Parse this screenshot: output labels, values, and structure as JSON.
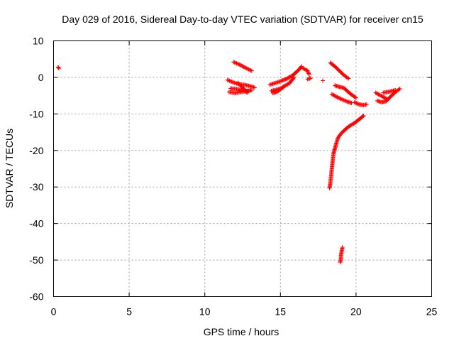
{
  "chart_data": {
    "type": "scatter",
    "title": "Day 029 of 2016, Sidereal Day-to-day VTEC variation (SDTVAR) for receiver cn15",
    "xlabel": "GPS time / hours",
    "ylabel": "SDTVAR / TECUs",
    "xlim": [
      0,
      25
    ],
    "ylim": [
      -60,
      10
    ],
    "xticks": [
      "0",
      "5",
      "10",
      "15",
      "20",
      "25"
    ],
    "yticks": [
      "10",
      "0",
      "-10",
      "-20",
      "-30",
      "-40",
      "-50",
      "-60"
    ],
    "grid": true,
    "marker": "plus",
    "color": "#ff0000",
    "series": [
      {
        "segments": [
          [
            [
              0.3,
              2.8
            ],
            [
              0.35,
              2.5
            ]
          ],
          [
            [
              11.9,
              4.2
            ],
            [
              12.3,
              3.5
            ],
            [
              12.7,
              2.6
            ],
            [
              13.1,
              1.8
            ]
          ],
          [
            [
              11.5,
              -0.7
            ],
            [
              11.9,
              -1.4
            ],
            [
              12.3,
              -1.9
            ],
            [
              12.7,
              -2.1
            ],
            [
              13.1,
              -2.5
            ],
            [
              13.3,
              -2.8
            ]
          ],
          [
            [
              11.6,
              -4.0
            ],
            [
              12.0,
              -4.3
            ],
            [
              12.4,
              -4.0
            ],
            [
              12.8,
              -3.7
            ],
            [
              13.1,
              -3.5
            ]
          ],
          [
            [
              11.7,
              -3.0
            ],
            [
              12.1,
              -3.2
            ],
            [
              12.5,
              -3.5
            ],
            [
              12.9,
              -3.8
            ]
          ],
          [
            [
              12.2,
              -1.5
            ],
            [
              12.5,
              -2.8
            ],
            [
              12.8,
              -4.2
            ]
          ],
          [
            [
              14.3,
              -2.0
            ],
            [
              14.7,
              -1.5
            ],
            [
              15.1,
              -0.9
            ],
            [
              15.4,
              -0.4
            ],
            [
              15.8,
              0.5
            ],
            [
              16.2,
              2.0
            ],
            [
              16.4,
              3.0
            ]
          ],
          [
            [
              14.4,
              -3.7
            ],
            [
              14.8,
              -3.3
            ],
            [
              15.1,
              -2.9
            ],
            [
              15.3,
              -2.3
            ],
            [
              15.6,
              -1.6
            ],
            [
              15.9,
              0.0
            ]
          ],
          [
            [
              14.5,
              -4.3
            ],
            [
              14.8,
              -3.9
            ],
            [
              15.2,
              -2.6
            ]
          ],
          [
            [
              16.5,
              2.5
            ],
            [
              16.8,
              1.8
            ],
            [
              16.9,
              0.8
            ]
          ],
          [
            [
              16.8,
              -0.5
            ],
            [
              17.0,
              -0.2
            ]
          ],
          [
            [
              17.8,
              -0.9
            ]
          ],
          [
            [
              18.3,
              4.0
            ],
            [
              18.6,
              3.0
            ],
            [
              18.9,
              1.8
            ],
            [
              19.2,
              0.6
            ],
            [
              19.5,
              -0.3
            ]
          ],
          [
            [
              18.6,
              -2.2
            ],
            [
              18.9,
              -2.6
            ],
            [
              19.2,
              -2.9
            ],
            [
              19.6,
              -4.4
            ],
            [
              20.0,
              -5.6
            ]
          ],
          [
            [
              18.4,
              -4.6
            ],
            [
              18.7,
              -5.3
            ],
            [
              19.0,
              -5.9
            ],
            [
              19.4,
              -6.6
            ],
            [
              19.7,
              -7.0
            ]
          ],
          [
            [
              19.9,
              -6.8
            ],
            [
              20.2,
              -7.4
            ],
            [
              20.5,
              -7.6
            ],
            [
              20.7,
              -7.4
            ]
          ],
          [
            [
              20.5,
              -10.5
            ],
            [
              20.2,
              -11.5
            ],
            [
              19.9,
              -12.5
            ],
            [
              19.6,
              -13.2
            ],
            [
              19.3,
              -14.2
            ],
            [
              19.0,
              -15.4
            ],
            [
              18.8,
              -16.6
            ],
            [
              18.7,
              -18.0
            ],
            [
              18.6,
              -19.5
            ],
            [
              18.5,
              -21.0
            ],
            [
              18.45,
              -23.0
            ],
            [
              18.4,
              -25.0
            ],
            [
              18.35,
              -27.0
            ],
            [
              18.3,
              -29.0
            ],
            [
              18.25,
              -30.3
            ]
          ],
          [
            [
              19.1,
              -46.5
            ],
            [
              19.05,
              -47.6
            ],
            [
              19.0,
              -48.7
            ],
            [
              19.0,
              -49.8
            ],
            [
              18.95,
              -50.6
            ]
          ],
          [
            [
              21.3,
              -4.2
            ],
            [
              21.6,
              -4.9
            ],
            [
              21.9,
              -5.6
            ],
            [
              22.1,
              -6.0
            ]
          ],
          [
            [
              21.4,
              -6.4
            ],
            [
              21.7,
              -6.8
            ],
            [
              22.0,
              -6.5
            ],
            [
              22.3,
              -5.2
            ],
            [
              22.6,
              -4.0
            ],
            [
              22.9,
              -3.1
            ]
          ],
          [
            [
              21.8,
              -4.2
            ],
            [
              22.2,
              -3.9
            ],
            [
              22.6,
              -3.5
            ]
          ]
        ]
      }
    ]
  }
}
